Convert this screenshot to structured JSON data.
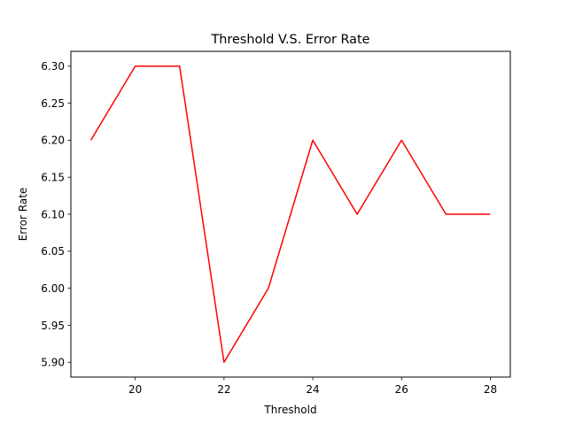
{
  "chart_data": {
    "type": "line",
    "title": "Threshold V.S. Error Rate",
    "xlabel": "Threshold",
    "ylabel": "Error Rate",
    "x": [
      19,
      20,
      21,
      22,
      23,
      24,
      25,
      26,
      27,
      28
    ],
    "series": [
      {
        "values": [
          6.2,
          6.3,
          6.3,
          5.9,
          6.0,
          6.2,
          6.1,
          6.2,
          6.1,
          6.1
        ],
        "color": "#ff0000"
      }
    ],
    "xlim": [
      18.55,
      28.45
    ],
    "ylim": [
      5.88,
      6.32
    ],
    "xticks": [
      "20",
      "22",
      "24",
      "26",
      "28"
    ],
    "yticks": [
      "5.90",
      "5.95",
      "6.00",
      "6.05",
      "6.10",
      "6.15",
      "6.20",
      "6.25",
      "6.30"
    ],
    "grid": false,
    "legend": false
  }
}
